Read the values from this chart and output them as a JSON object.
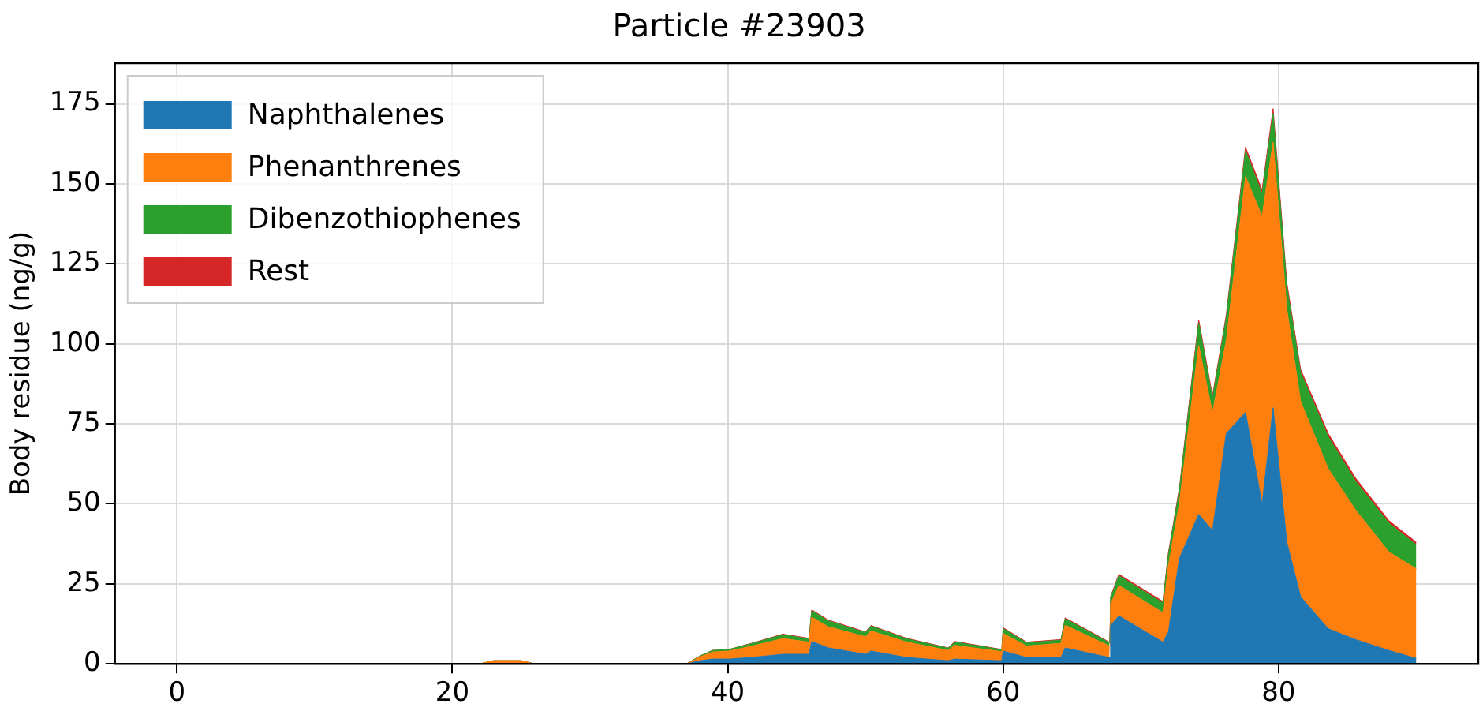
{
  "chart_data": {
    "type": "area",
    "title": "Particle #23903",
    "ylabel": "Body residue (ng/g)",
    "stacked": true,
    "x": [
      0,
      22,
      23,
      25,
      26,
      37,
      38,
      38.9,
      40.1,
      41.7,
      44,
      45.9,
      46.1,
      47.3,
      50,
      50.4,
      53,
      56,
      56.5,
      59.9,
      60,
      61.7,
      64.2,
      64.5,
      67.7,
      67.8,
      68.4,
      71.6,
      72,
      72.8,
      74.2,
      75.2,
      76.2,
      77.6,
      78.8,
      79.6,
      80.6,
      81.6,
      83.6,
      85.6,
      88,
      90
    ],
    "series": [
      {
        "name": "Naphthalenes",
        "color": "#1f77b4",
        "values": [
          0,
          0,
          0,
          0,
          0,
          0,
          1,
          1.5,
          1.5,
          2,
          3,
          3,
          7,
          5,
          3,
          4,
          2,
          1,
          1.5,
          1,
          4,
          2,
          2,
          5,
          2,
          12,
          15,
          6.8,
          10,
          33,
          46.7,
          41.6,
          72,
          78.6,
          49.9,
          80,
          38,
          21,
          11,
          7.6,
          4.2,
          1.7
        ]
      },
      {
        "name": "Phenanthrenes",
        "color": "#ff7f0e",
        "values": [
          0,
          0,
          1,
          1,
          0,
          0,
          1.2,
          2.2,
          2.5,
          3.5,
          4.9,
          3.8,
          7.6,
          6.6,
          5.5,
          6.3,
          4.8,
          3.2,
          4.3,
          2.8,
          5.5,
          3.6,
          4.4,
          7.1,
          3.6,
          6.6,
          9.5,
          9.2,
          20.7,
          17.3,
          52.8,
          36.8,
          29,
          73.7,
          89.9,
          83,
          72.8,
          61,
          50,
          40.4,
          30.8,
          28
        ]
      },
      {
        "name": "Dibenzothiophenes",
        "color": "#2ca02c",
        "values": [
          0,
          0,
          0,
          0,
          0,
          0,
          0.3,
          0.5,
          0.5,
          0.8,
          1.2,
          1,
          2,
          1.8,
          1.3,
          1.5,
          1,
          0.7,
          1,
          0.6,
          1.5,
          1,
          1,
          2,
          1,
          2,
          3,
          3,
          3.5,
          4,
          7,
          4.5,
          7,
          8,
          7,
          9,
          7,
          9,
          10,
          9,
          9,
          7.5
        ]
      },
      {
        "name": "Rest",
        "color": "#d62728",
        "values": [
          0,
          0,
          0,
          0,
          0,
          0,
          0,
          0,
          0,
          0.1,
          0.2,
          0.2,
          0.3,
          0.3,
          0.2,
          0.2,
          0.2,
          0.1,
          0.2,
          0.1,
          0.3,
          0.2,
          0.2,
          0.3,
          0.2,
          0.4,
          0.5,
          0.5,
          0.5,
          0.7,
          1,
          0.8,
          1,
          1.2,
          1.2,
          1.5,
          1.2,
          1,
          1,
          1,
          0.8,
          0.8
        ]
      }
    ],
    "xlim": [
      -4.5,
      94.5
    ],
    "xticks": [
      0,
      20,
      40,
      60,
      80
    ],
    "ylim": [
      0,
      187.7
    ],
    "yticks": [
      0,
      25,
      50,
      75,
      100,
      125,
      150,
      175
    ],
    "grid": true,
    "legend": "top left"
  }
}
